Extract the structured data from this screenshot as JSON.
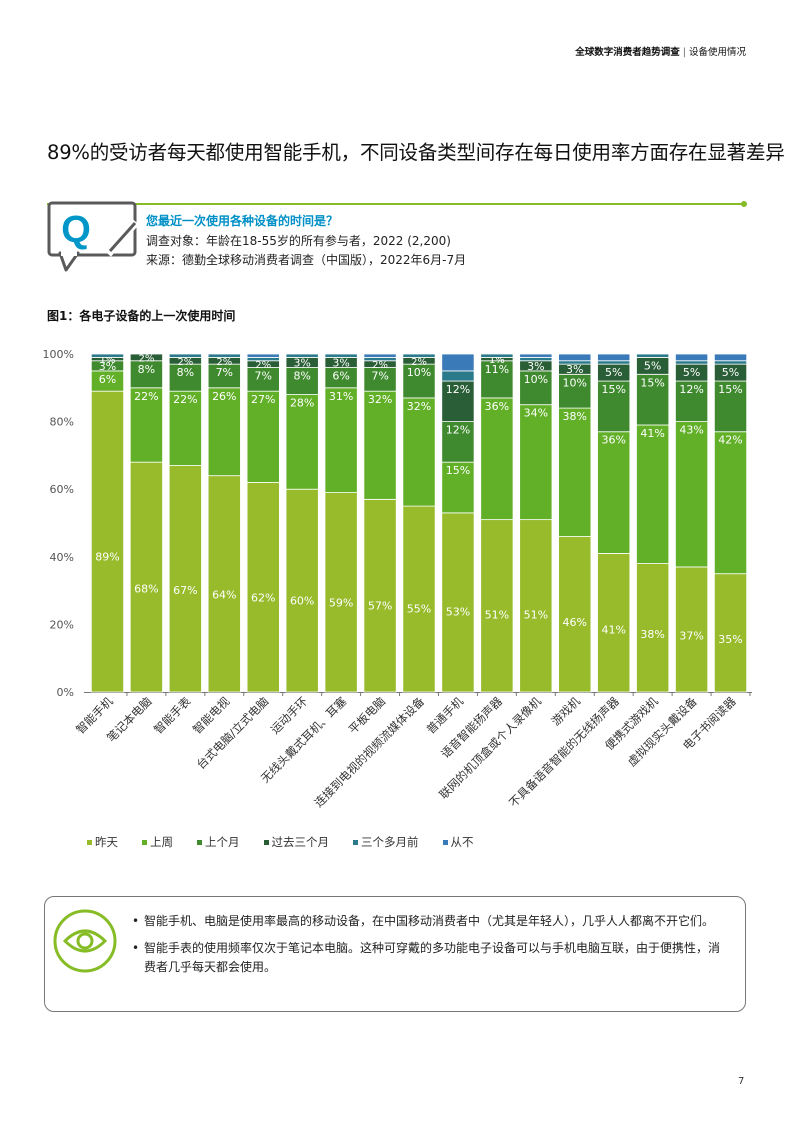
{
  "header": {
    "title": "全球数字消费者趋势调查",
    "section": "设备使用情况"
  },
  "title": "89%的受访者每天都使用智能手机，不同设备类型间存在每日使用率方面存在显著差异",
  "question": {
    "icon_letter": "Q",
    "text": "您最近一次使用各种设备的时间是？",
    "respondents": "调查对象：年龄在18-55岁的所有参与者，2022 (2,200)",
    "source": "来源：德勤全球移动消费者调查（中国版），2022年6月-7月"
  },
  "figure_title": "图1：各电子设备的上一次使用时间",
  "chart_data": {
    "type": "bar",
    "stacked": true,
    "categories": [
      "智能手机",
      "笔记本电脑",
      "智能手表",
      "智能电视",
      "台式电脑/立式电脑",
      "运动手环",
      "无线头戴式耳机、耳塞",
      "平板电脑",
      "连接到电视的视频流媒体设备",
      "普通手机",
      "语音智能扬声器",
      "联网的机顶盒或个人录像机",
      "游戏机",
      "不具备语音智能的无线扬声器",
      "便携式游戏机",
      "虚拟现实头戴设备",
      "电子书阅读器"
    ],
    "series": [
      {
        "name": "昨天",
        "color": "#97bb2b",
        "values": [
          89,
          68,
          67,
          64,
          62,
          60,
          59,
          57,
          55,
          53,
          51,
          51,
          46,
          41,
          38,
          37,
          35
        ],
        "labels": [
          "89%",
          "68%",
          "67%",
          "64%",
          "62%",
          "60%",
          "59%",
          "57%",
          "55%",
          "53%",
          "51%",
          "51%",
          "46%",
          "41%",
          "38%",
          "37%",
          "35%"
        ]
      },
      {
        "name": "上周",
        "color": "#62af28",
        "values": [
          6,
          22,
          22,
          26,
          27,
          28,
          31,
          32,
          32,
          15,
          36,
          34,
          38,
          36,
          41,
          43,
          42
        ],
        "labels": [
          "6%",
          "22%",
          "22%",
          "26%",
          "27%",
          "28%",
          "31%",
          "32%",
          "32%",
          "15%",
          "36%",
          "34%",
          "38%",
          "36%",
          "41%",
          "43%",
          "42%"
        ]
      },
      {
        "name": "上个月",
        "color": "#3f8a2e",
        "values": [
          3,
          8,
          8,
          7,
          7,
          8,
          6,
          7,
          10,
          12,
          11,
          10,
          10,
          15,
          15,
          12,
          15
        ],
        "labels": [
          "3%",
          "8%",
          "8%",
          "7%",
          "7%",
          "8%",
          "6%",
          "7%",
          "10%",
          "12%",
          "11%",
          "10%",
          "10%",
          "15%",
          "15%",
          "12%",
          "15%"
        ]
      },
      {
        "name": "过去三个月",
        "color": "#2a5e36",
        "values": [
          1,
          2,
          2,
          2,
          2,
          3,
          3,
          2,
          2,
          12,
          1,
          3,
          3,
          5,
          5,
          5,
          5
        ],
        "labels": [
          "1%",
          "2%",
          "2%",
          "2%",
          "2%",
          "3%",
          "3%",
          "2%",
          "2%",
          "12%",
          "1%",
          "3%",
          "3%",
          "5%",
          "5%",
          "5%",
          "5%"
        ]
      },
      {
        "name": "三个多月前",
        "color": "#2a7a8c",
        "values": [
          1,
          0,
          1,
          1,
          1,
          1,
          1,
          1,
          1,
          3,
          1,
          1,
          1,
          1,
          1,
          1,
          1
        ]
      },
      {
        "name": "从不",
        "color": "#3a7ab8",
        "values": [
          0,
          0,
          0,
          0,
          1,
          0,
          0,
          1,
          0,
          5,
          0,
          1,
          2,
          2,
          0,
          2,
          2
        ]
      }
    ],
    "ylim": [
      0,
      100
    ],
    "yticks": [
      "0%",
      "20%",
      "40%",
      "60%",
      "80%",
      "100%"
    ],
    "legend_position": "bottom-left",
    "grid": false
  },
  "insights": [
    "智能手机、电脑是使用率最高的移动设备，在中国移动消费者中（尤其是年轻人），几乎人人都离不开它们。",
    "智能手表的使用频率仅次于笔记本电脑。这种可穿戴的多功能电子设备可以与手机电脑互联，由于便携性，消费者几乎每天都会使用。"
  ],
  "page_number": "7"
}
